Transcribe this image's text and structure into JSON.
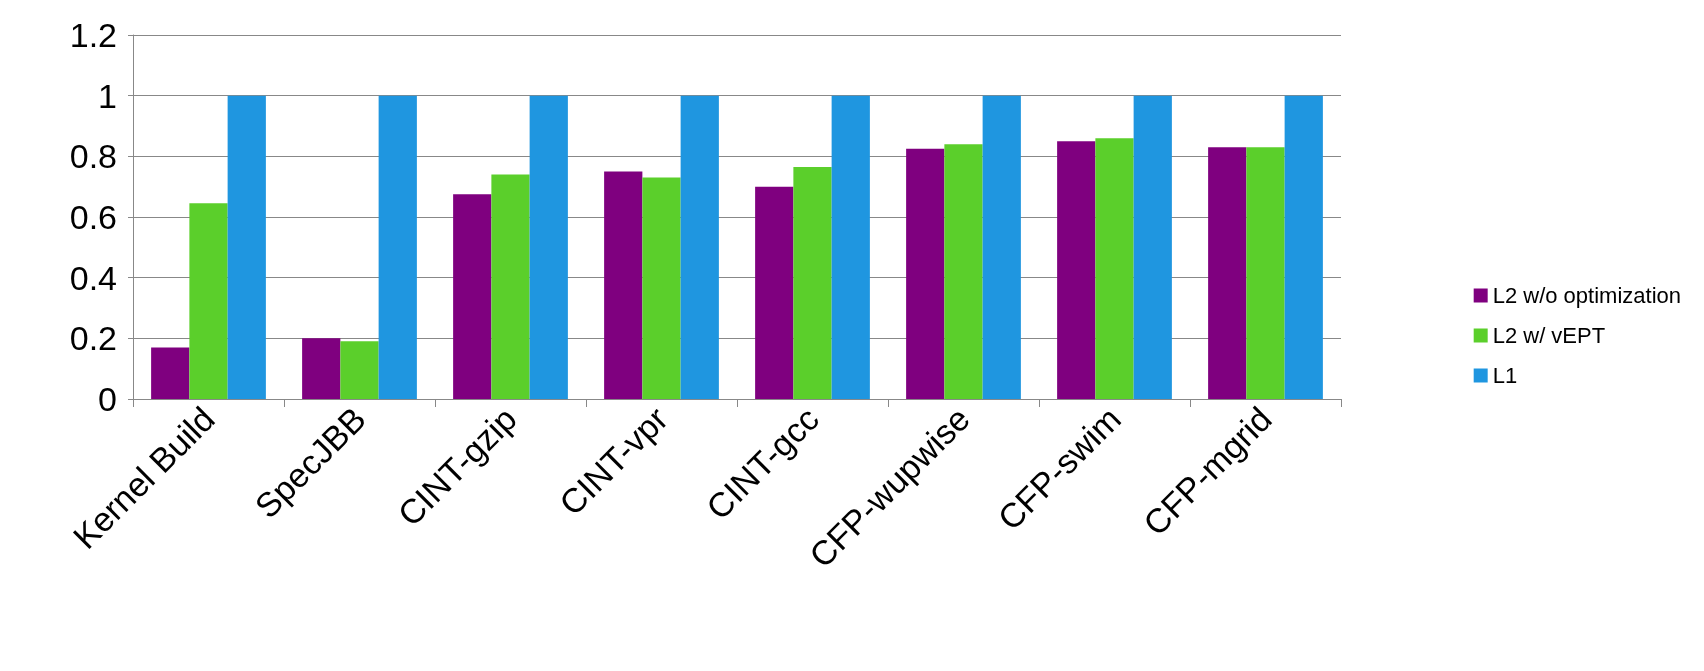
{
  "chart_data": {
    "type": "bar",
    "categories": [
      "Kernel Build",
      "SpecJBB",
      "CINT-gzip",
      "CINT-vpr",
      "CINT-gcc",
      "CFP-wupwise",
      "CFP-swim",
      "CFP-mgrid"
    ],
    "series": [
      {
        "name": "L2 w/o optimization",
        "color": "#7f007f",
        "values": [
          0.17,
          0.2,
          0.675,
          0.75,
          0.7,
          0.825,
          0.85,
          0.83
        ]
      },
      {
        "name": "L2 w/ vEPT",
        "color": "#5bcf2b",
        "values": [
          0.645,
          0.19,
          0.74,
          0.73,
          0.765,
          0.84,
          0.86,
          0.83
        ]
      },
      {
        "name": "L1",
        "color": "#1f96e0",
        "values": [
          1,
          1,
          1,
          1,
          1,
          1,
          1,
          1
        ]
      }
    ],
    "ylim": [
      0,
      1.2
    ],
    "yticks": [
      0,
      0.2,
      0.4,
      0.6,
      0.8,
      1,
      1.2
    ],
    "grid": "y",
    "legend": "right"
  }
}
